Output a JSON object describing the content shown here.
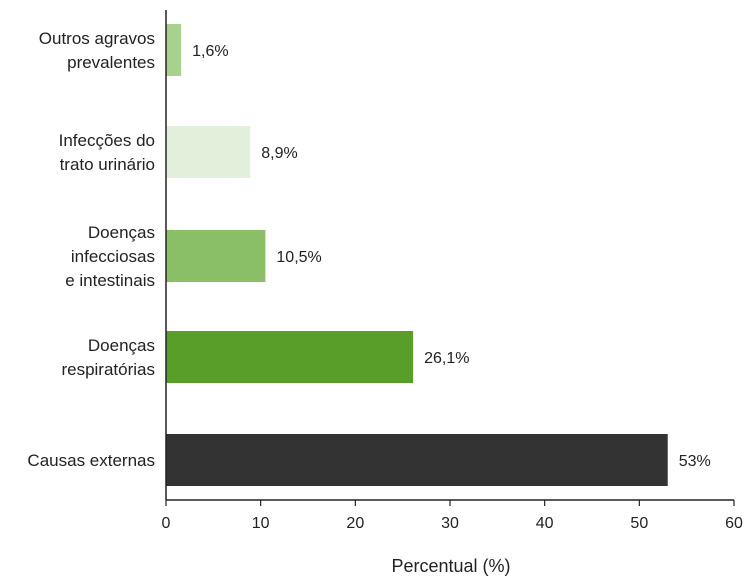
{
  "chart_data": {
    "type": "bar",
    "orientation": "horizontal",
    "categories": [
      [
        "Outros agravos",
        "prevalentes"
      ],
      [
        "Infecções do",
        "trato urinário"
      ],
      [
        "Doenças",
        "infecciosas",
        "e intestinais"
      ],
      [
        "Doenças",
        "respiratórias"
      ],
      [
        "Causas externas"
      ]
    ],
    "values": [
      1.6,
      8.9,
      10.5,
      26.1,
      53
    ],
    "value_labels": [
      "1,6%",
      "8,9%",
      "10,5%",
      "26,1%",
      "53%"
    ],
    "bar_colors": [
      "#a9d18e",
      "#e2efda",
      "#8bbf67",
      "#5a9e2a",
      "#333333"
    ],
    "xlabel": "Percentual (%)",
    "ylabel": "",
    "title": "",
    "xlim": [
      0,
      60
    ],
    "xticks": [
      0,
      10,
      20,
      30,
      40,
      50,
      60
    ],
    "grid": false,
    "legend": "none"
  }
}
